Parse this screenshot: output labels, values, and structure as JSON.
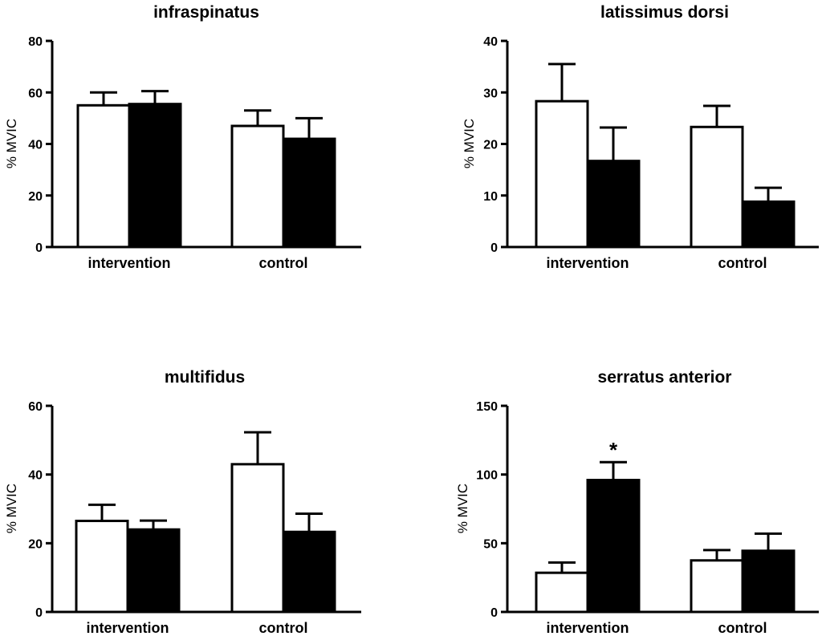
{
  "chart_data": [
    {
      "type": "bar",
      "title": "infraspinatus",
      "ylabel": "% MVIC",
      "xlabel": "",
      "ylim": [
        0,
        80
      ],
      "yticks": [
        "0",
        "20",
        "40",
        "60",
        "80"
      ],
      "categories": [
        "intervention",
        "control"
      ],
      "series": [
        {
          "name": "open",
          "fill": "#ffffff",
          "values": [
            55,
            47
          ],
          "errors": [
            5,
            6
          ]
        },
        {
          "name": "filled",
          "fill": "#000000",
          "values": [
            55.5,
            42
          ],
          "errors": [
            5,
            8
          ]
        }
      ],
      "annotations": []
    },
    {
      "type": "bar",
      "title": "latissimus dorsi",
      "ylabel": "% MVIC",
      "xlabel": "",
      "ylim": [
        0,
        40
      ],
      "yticks": [
        "0",
        "10",
        "20",
        "30",
        "40"
      ],
      "categories": [
        "intervention",
        "control"
      ],
      "series": [
        {
          "name": "open",
          "fill": "#ffffff",
          "values": [
            28.3,
            23.3
          ],
          "errors": [
            7.2,
            4.1
          ]
        },
        {
          "name": "filled",
          "fill": "#000000",
          "values": [
            16.7,
            8.8
          ],
          "errors": [
            6.5,
            2.7
          ]
        }
      ],
      "annotations": []
    },
    {
      "type": "bar",
      "title": "multifidus",
      "ylabel": "% MVIC",
      "xlabel": "",
      "ylim": [
        0,
        60
      ],
      "yticks": [
        "0",
        "20",
        "40",
        "60"
      ],
      "categories": [
        "intervention",
        "control"
      ],
      "series": [
        {
          "name": "open",
          "fill": "#ffffff",
          "values": [
            26.5,
            43
          ],
          "errors": [
            4.7,
            9.3
          ]
        },
        {
          "name": "filled",
          "fill": "#000000",
          "values": [
            24,
            23.3
          ],
          "errors": [
            2.6,
            5.3
          ]
        }
      ],
      "annotations": []
    },
    {
      "type": "bar",
      "title": "serratus anterior",
      "ylabel": "% MVIC",
      "xlabel": "",
      "ylim": [
        0,
        150
      ],
      "yticks": [
        "0",
        "50",
        "100",
        "150"
      ],
      "categories": [
        "intervention",
        "control"
      ],
      "series": [
        {
          "name": "open",
          "fill": "#ffffff",
          "values": [
            28.5,
            37.5
          ],
          "errors": [
            7.5,
            7.5
          ]
        },
        {
          "name": "filled",
          "fill": "#000000",
          "values": [
            96,
            44.5
          ],
          "errors": [
            13,
            12.5
          ]
        }
      ],
      "annotations": [
        {
          "text": "*",
          "category": 0,
          "series": 1
        }
      ]
    }
  ]
}
